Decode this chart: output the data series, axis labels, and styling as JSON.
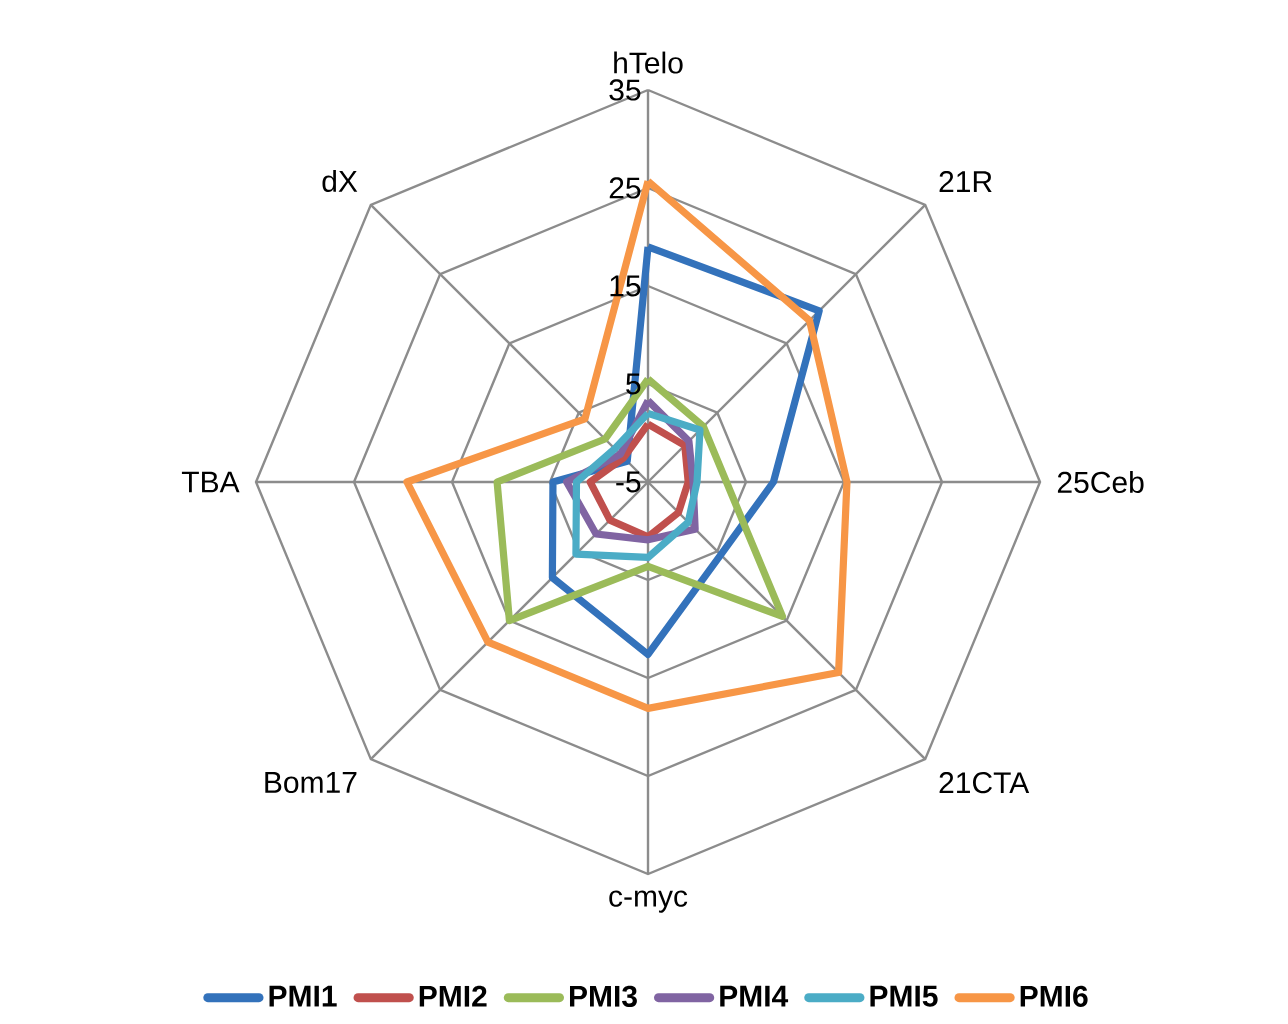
{
  "chart_data": {
    "type": "radar",
    "categories": [
      "hTelo",
      "21R",
      "25Ceb",
      "21CTA",
      "c-myc",
      "Bom17",
      "TBA",
      "dX"
    ],
    "ylim": [
      -5,
      35
    ],
    "yticks": [
      -5,
      5,
      15,
      25,
      35
    ],
    "grid": true,
    "legend": "bottom",
    "series": [
      {
        "name": "PMI1",
        "color": "#3372bb",
        "values": [
          19,
          19.7,
          7.8,
          5.5,
          12.6,
          8.8,
          4.7,
          -2
        ]
      },
      {
        "name": "PMI2",
        "color": "#c0504d",
        "values": [
          0.9,
          0.3,
          -0.9,
          -0.6,
          0.6,
          0.5,
          0.9,
          -1.5
        ]
      },
      {
        "name": "PMI3",
        "color": "#9bbb59",
        "values": [
          5.5,
          3,
          3,
          14.4,
          3.6,
          15,
          10.4,
          1.2
        ]
      },
      {
        "name": "PMI4",
        "color": "#8064a2",
        "values": [
          3.3,
          0.9,
          -0.4,
          1.8,
          0.9,
          2.5,
          3.3,
          -1
        ]
      },
      {
        "name": "PMI5",
        "color": "#4bacc6",
        "values": [
          2,
          2.5,
          0,
          0.8,
          2.7,
          5.4,
          2.3,
          -0.2
        ]
      },
      {
        "name": "PMI6",
        "color": "#f79646",
        "values": [
          25.7,
          18.3,
          15.3,
          22.5,
          18.1,
          18.1,
          19.6,
          4.1
        ]
      }
    ]
  }
}
